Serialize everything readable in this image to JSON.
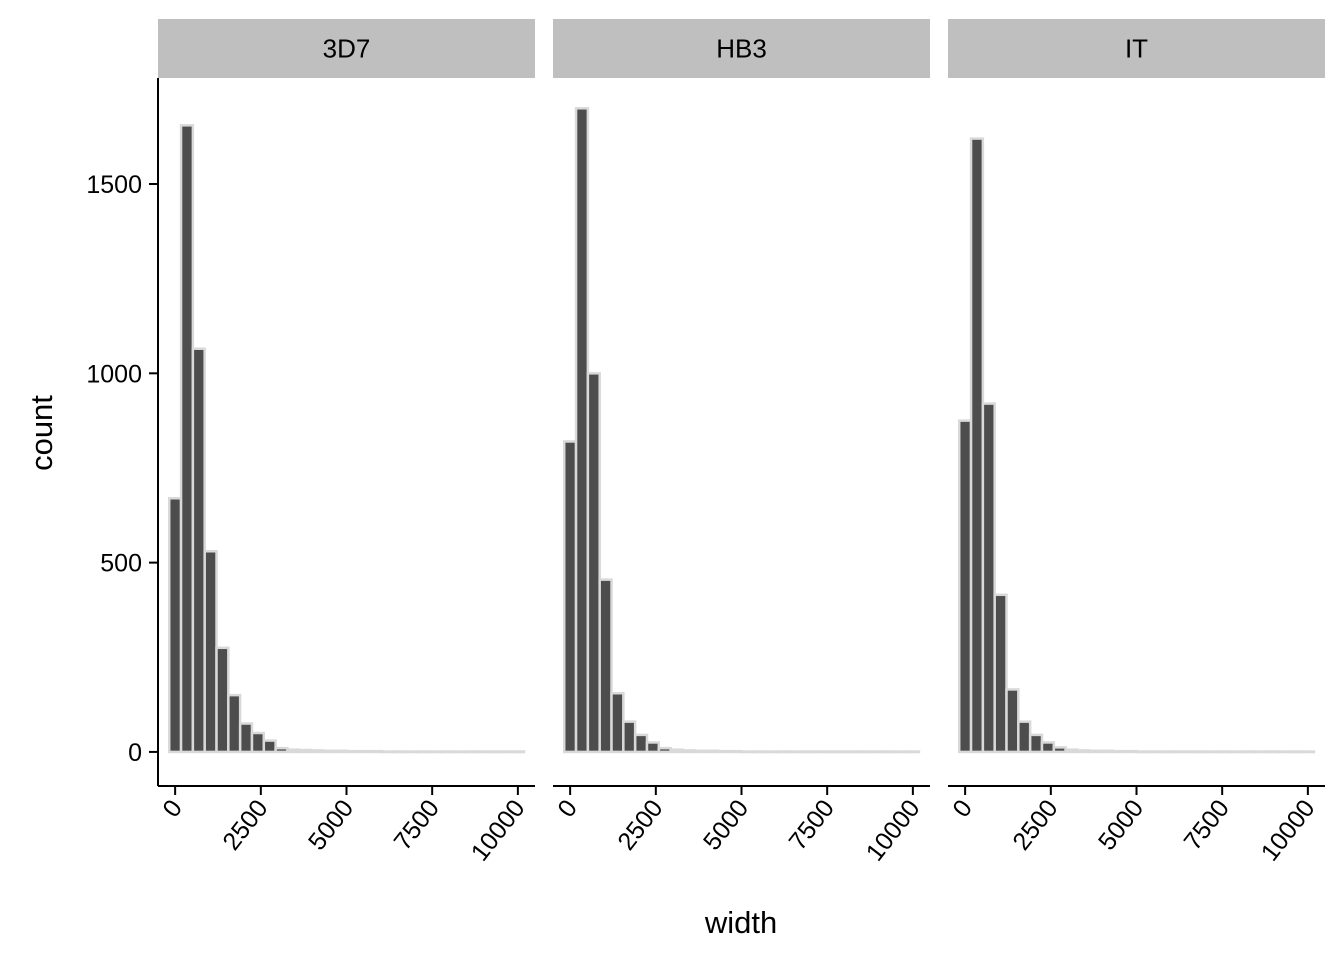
{
  "chart_data": {
    "type": "bar",
    "subtype": "histogram",
    "facet_variable": "strain",
    "xlabel": "width",
    "ylabel": "count",
    "xlim": [
      -500,
      10500
    ],
    "ylim": [
      -90,
      1780
    ],
    "x_ticks": [
      0,
      2500,
      5000,
      7500,
      10000
    ],
    "x_tick_labels": [
      "0",
      "2500",
      "5000",
      "7500",
      "10000"
    ],
    "y_ticks": [
      0,
      500,
      1000,
      1500
    ],
    "y_tick_labels": [
      "0",
      "500",
      "1000",
      "1500"
    ],
    "bin_width": 345,
    "bin_centers": [
      0,
      345,
      690,
      1035,
      1380,
      1725,
      2070,
      2415,
      2760,
      3105,
      3450,
      3795,
      4140,
      4485,
      4830,
      5175,
      5520,
      5865,
      6210,
      6555,
      6900,
      7245,
      7590,
      7935,
      8280,
      8625,
      8970,
      9315,
      9660,
      10005
    ],
    "grid": false,
    "legend": "none",
    "colors": {
      "bar_fill": "#4d4d4d",
      "bar_outline": "#d9d9d9",
      "strip_background": "#bfbfbf"
    },
    "panels": [
      {
        "name": "3D7",
        "counts": [
          670,
          1655,
          1065,
          530,
          275,
          150,
          75,
          50,
          30,
          10,
          6,
          5,
          4,
          3,
          3,
          2,
          2,
          2,
          1,
          1,
          1,
          1,
          1,
          1,
          1,
          1,
          1,
          1,
          1,
          1
        ]
      },
      {
        "name": "HB3",
        "counts": [
          820,
          1700,
          1000,
          455,
          155,
          80,
          45,
          25,
          10,
          6,
          4,
          3,
          3,
          2,
          2,
          1,
          1,
          1,
          1,
          1,
          1,
          1,
          1,
          1,
          1,
          1,
          1,
          1,
          1,
          1
        ]
      },
      {
        "name": "IT",
        "counts": [
          875,
          1620,
          920,
          415,
          165,
          80,
          45,
          25,
          12,
          6,
          4,
          3,
          3,
          2,
          2,
          1,
          1,
          1,
          1,
          1,
          1,
          1,
          1,
          1,
          1,
          1,
          1,
          1,
          1,
          1
        ]
      }
    ]
  }
}
